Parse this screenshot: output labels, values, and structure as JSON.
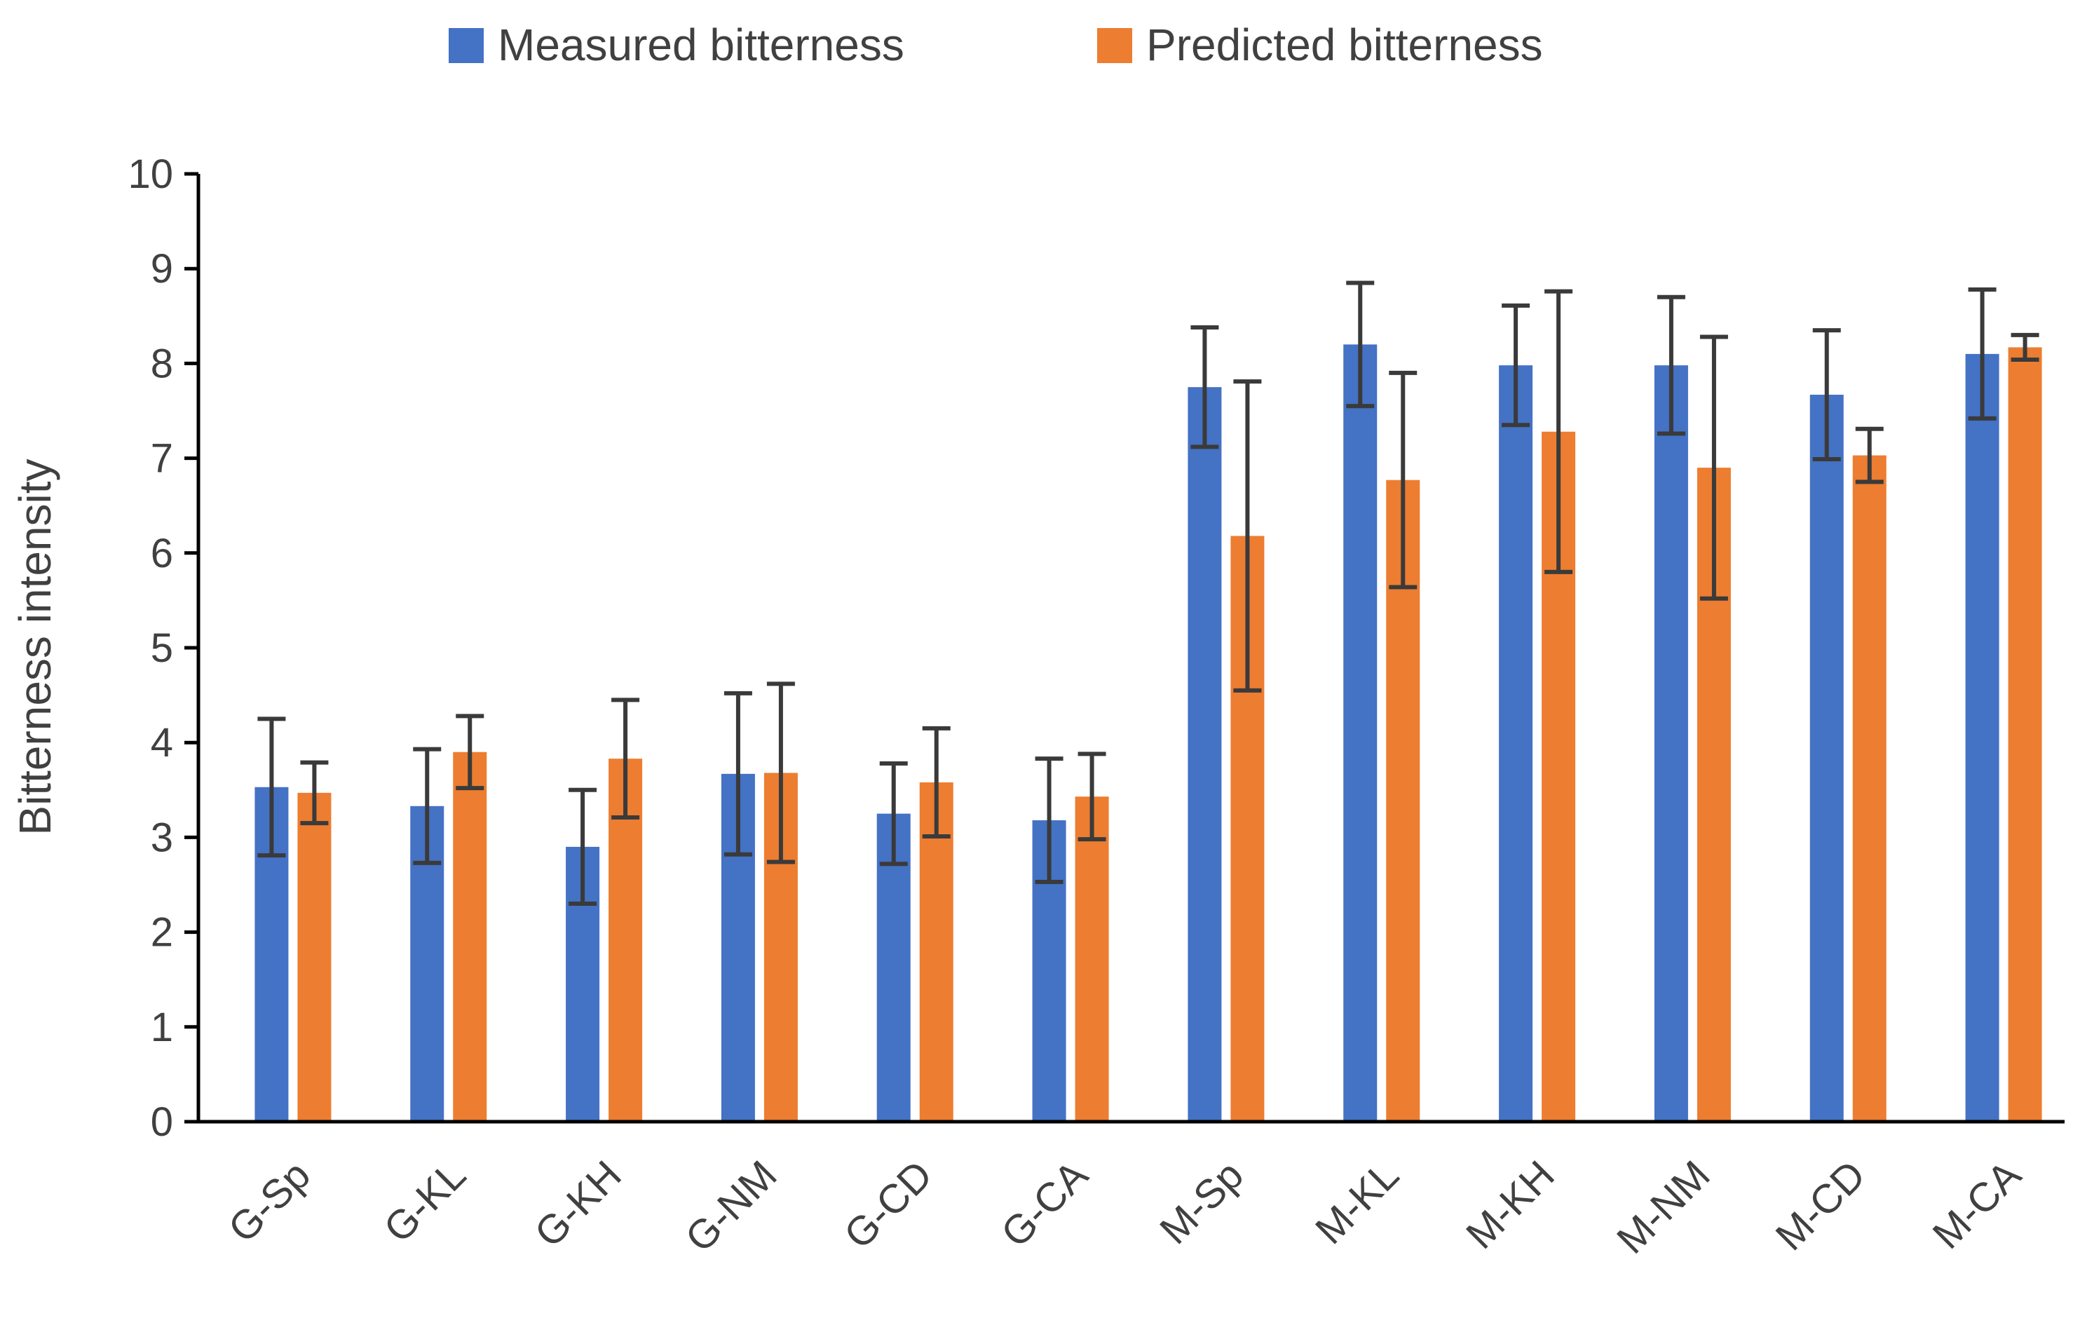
{
  "chart_data": {
    "type": "bar",
    "title": "",
    "xlabel": "",
    "ylabel": "Bitterness intensity",
    "ylim": [
      0,
      10
    ],
    "yticks": [
      0,
      1,
      2,
      3,
      4,
      5,
      6,
      7,
      8,
      9,
      10
    ],
    "legend_position": "top-center",
    "grid": false,
    "categories": [
      "G-Sp",
      "G-KL",
      "G-KH",
      "G-NM",
      "G-CD",
      "G-CA",
      "M-Sp",
      "M-KL",
      "M-KH",
      "M-NM",
      "M-CD",
      "M-CA"
    ],
    "series": [
      {
        "name": "Measured bitterness",
        "color": "#4472C4",
        "values": [
          3.53,
          3.33,
          2.9,
          3.67,
          3.25,
          3.18,
          7.75,
          8.2,
          7.98,
          7.98,
          7.67,
          8.1
        ],
        "errors": [
          0.72,
          0.6,
          0.6,
          0.85,
          0.53,
          0.65,
          0.63,
          0.65,
          0.63,
          0.72,
          0.68,
          0.68
        ]
      },
      {
        "name": "Predicted bitterness",
        "color": "#ED7D31",
        "values": [
          3.47,
          3.9,
          3.83,
          3.68,
          3.58,
          3.43,
          6.18,
          6.77,
          7.28,
          6.9,
          7.03,
          8.17
        ],
        "errors": [
          0.32,
          0.38,
          0.62,
          0.94,
          0.57,
          0.45,
          1.63,
          1.13,
          1.48,
          1.38,
          0.28,
          0.13
        ]
      }
    ]
  }
}
